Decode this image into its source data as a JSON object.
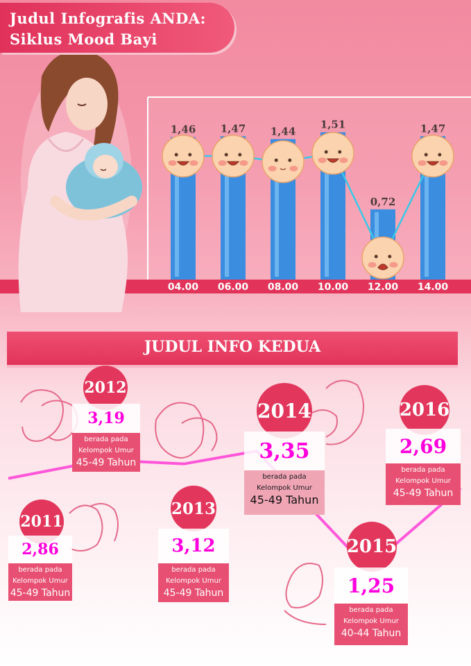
{
  "header": {
    "title_line1": "Judul Infografis ANDA:",
    "title_line2": "Siklus Mood Bayi"
  },
  "colors": {
    "accent": "#e3365c",
    "bar": "#3b8de0",
    "line": "#38c8e8",
    "trend": "#ff3cd6",
    "value_highlight": "#ff00dd"
  },
  "chart_data": [
    {
      "type": "bar",
      "categories": [
        "04.00",
        "06.00",
        "08.00",
        "10.00",
        "12.00",
        "14.00"
      ],
      "values": [
        1.46,
        1.47,
        1.44,
        1.51,
        0.72,
        1.47
      ],
      "value_labels": [
        "1,46",
        "1,47",
        "1,44",
        "1,51",
        "0,72",
        "1,47"
      ],
      "faces": [
        "laughing",
        "smiling-girl",
        "sleeping",
        "smiling",
        "crying",
        "winking"
      ],
      "title": "",
      "ylim": [
        0,
        1.6
      ],
      "grid": false
    },
    {
      "type": "line",
      "categories": [
        "2011",
        "2012",
        "2013",
        "2014",
        "2015",
        "2016"
      ],
      "values": [
        2.86,
        3.19,
        3.12,
        3.35,
        1.25,
        2.69
      ],
      "ylim": [
        0,
        3.6
      ]
    }
  ],
  "section2": {
    "title": "JUDUL INFO KEDUA",
    "cards": [
      {
        "year": "2011",
        "value": "2,86",
        "line1": "berada pada",
        "line2": "Kelompok Umur",
        "age": "45-49 Tahun"
      },
      {
        "year": "2012",
        "value": "3,19",
        "line1": "berada pada",
        "line2": "Kelompok Umur",
        "age": "45-49 Tahun"
      },
      {
        "year": "2013",
        "value": "3,12",
        "line1": "berada pada",
        "line2": "Kelompok Umur",
        "age": "45-49 Tahun"
      },
      {
        "year": "2014",
        "value": "3,35",
        "line1": "berada pada",
        "line2": "Kelompok Umur",
        "age": "45-49 Tahun"
      },
      {
        "year": "2015",
        "value": "1,25",
        "line1": "berada pada",
        "line2": "Kelompok Umur",
        "age": "40-44 Tahun"
      },
      {
        "year": "2016",
        "value": "2,69",
        "line1": "berada pada",
        "line2": "Kelompok Umur",
        "age": "45-49 Tahun"
      }
    ]
  },
  "icons": [
    "mother-baby-illustration",
    "baby-face-icon",
    "mother-baby-line-icon"
  ]
}
